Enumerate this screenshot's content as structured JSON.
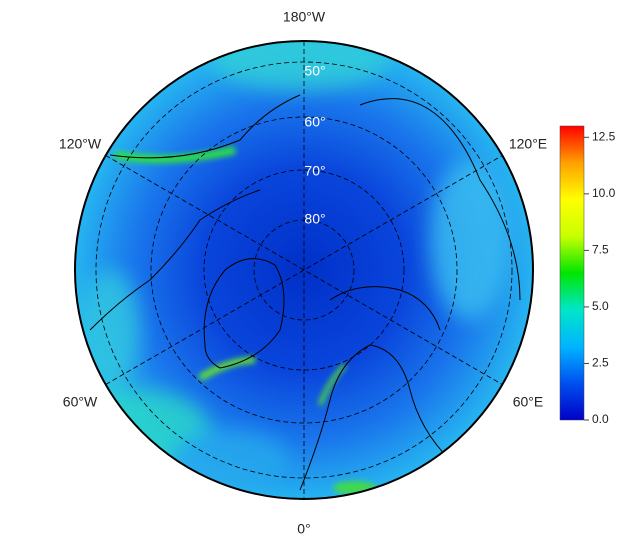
{
  "map": {
    "lon_labels": [
      "180°W",
      "120°W",
      "120°E",
      "60°W",
      "60°E",
      "0°"
    ],
    "lat_labels": [
      "50°",
      "60°",
      "70°",
      "80°"
    ],
    "colorbar": {
      "lim": [
        0,
        13
      ],
      "ticks": [
        {
          "value": 0,
          "label": "0.0"
        },
        2.5,
        {
          "value": 5,
          "label": "5.0"
        },
        7.5,
        {
          "value": 10,
          "label": "10.0"
        },
        12.5
      ],
      "colors": [
        "#0000c8",
        "#0050f0",
        "#00b4ff",
        "#00e6c8",
        "#00e600",
        "#c8ff00",
        "#ffff00",
        "#ffa000",
        "#ff0000"
      ]
    }
  }
}
